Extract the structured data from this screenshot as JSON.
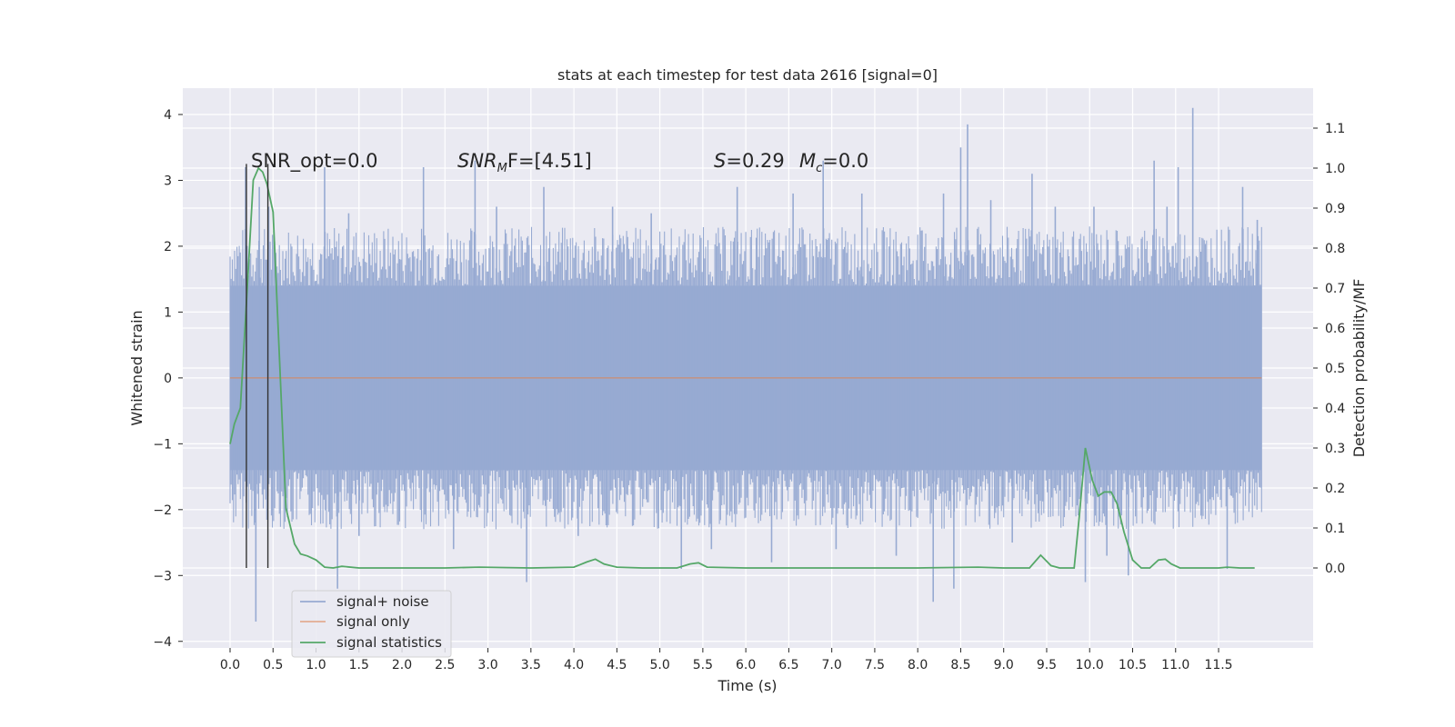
{
  "chart_data": {
    "type": "line",
    "title": "stats at each timestep for test data 2616 [signal=0]",
    "xlabel": "Time (s)",
    "ylabel": "Whitened strain",
    "ylabel_right": "Detection probability/MF",
    "xlim": [
      -0.55,
      12.6
    ],
    "ylim": [
      -4.1,
      4.4
    ],
    "ylim_right": [
      -0.2,
      1.2
    ],
    "x_ticks": [
      0.0,
      0.5,
      1.0,
      1.5,
      2.0,
      2.5,
      3.0,
      3.5,
      4.0,
      4.5,
      5.0,
      5.5,
      6.0,
      6.5,
      7.0,
      7.5,
      8.0,
      8.5,
      9.0,
      9.5,
      10.0,
      10.5,
      11.0,
      11.5
    ],
    "x_tick_labels": [
      "0.0",
      "0.5",
      "1.0",
      "1.5",
      "2.0",
      "2.5",
      "3.0",
      "3.5",
      "4.0",
      "4.5",
      "5.0",
      "5.5",
      "6.0",
      "6.5",
      "7.0",
      "7.5",
      "8.0",
      "8.5",
      "9.0",
      "9.5",
      "10.0",
      "10.5",
      "11.0",
      "11.5"
    ],
    "y_ticks": [
      -4,
      -3,
      -2,
      -1,
      0,
      1,
      2,
      3,
      4
    ],
    "y_tick_labels": [
      "−4",
      "−3",
      "−2",
      "−1",
      "0",
      "1",
      "2",
      "3",
      "4"
    ],
    "y_right_ticks": [
      0.0,
      0.1,
      0.2,
      0.3,
      0.4,
      0.5,
      0.6,
      0.7,
      0.8,
      0.9,
      1.0,
      1.1
    ],
    "y_right_tick_labels": [
      "0.0",
      "0.1",
      "0.2",
      "0.3",
      "0.4",
      "0.5",
      "0.6",
      "0.7",
      "0.8",
      "0.9",
      "1.0",
      "1.1"
    ],
    "grid": true,
    "legend_position": "lower-left",
    "annotations": {
      "snr_opt": "SNR_opt=0.0",
      "snr_mf_main": "SNR",
      "snr_mf_sub": "M",
      "snr_mf_rest": "F=[4.51]",
      "s_main": "S",
      "s_rest": "=0.29",
      "mc_main": "M",
      "mc_sub": "c",
      "mc_rest": "=0.0"
    },
    "vertical_markers_x": [
      0.19,
      0.44
    ],
    "series": [
      {
        "name": "signal+ noise",
        "color": "#97aad2",
        "axis": "left",
        "x_range": [
          0.0,
          12.0
        ],
        "band": [
          -1.4,
          1.4
        ],
        "spikes": [
          [
            0.18,
            3.2
          ],
          [
            0.34,
            2.9
          ],
          [
            0.45,
            2.6
          ],
          [
            1.1,
            3.2
          ],
          [
            1.25,
            -3.2
          ],
          [
            1.38,
            2.5
          ],
          [
            2.25,
            3.2
          ],
          [
            2.85,
            3.3
          ],
          [
            3.45,
            -3.1
          ],
          [
            3.65,
            2.9
          ],
          [
            4.45,
            2.6
          ],
          [
            5.25,
            -2.9
          ],
          [
            5.9,
            2.9
          ],
          [
            6.3,
            -2.8
          ],
          [
            6.55,
            2.8
          ],
          [
            6.9,
            3.3
          ],
          [
            7.35,
            2.8
          ],
          [
            7.75,
            -2.7
          ],
          [
            8.18,
            -3.4
          ],
          [
            8.3,
            2.8
          ],
          [
            8.42,
            -3.2
          ],
          [
            8.5,
            3.5
          ],
          [
            8.58,
            3.85
          ],
          [
            8.85,
            2.7
          ],
          [
            9.33,
            3.1
          ],
          [
            9.6,
            2.6
          ],
          [
            9.95,
            -3.1
          ],
          [
            10.05,
            2.6
          ],
          [
            10.45,
            -3.0
          ],
          [
            10.75,
            3.3
          ],
          [
            11.03,
            3.2
          ],
          [
            11.2,
            4.1
          ],
          [
            11.6,
            -2.9
          ],
          [
            11.78,
            2.9
          ],
          [
            11.95,
            2.4
          ],
          [
            0.3,
            -3.7
          ],
          [
            1.5,
            -2.4
          ],
          [
            2.6,
            -2.6
          ],
          [
            3.1,
            2.6
          ],
          [
            4.05,
            -2.4
          ],
          [
            4.9,
            2.5
          ],
          [
            5.6,
            -2.6
          ],
          [
            7.05,
            -2.6
          ],
          [
            9.1,
            -2.5
          ],
          [
            10.2,
            -2.7
          ],
          [
            10.9,
            2.6
          ]
        ]
      },
      {
        "name": "signal only",
        "color": "#dd8452",
        "axis": "left",
        "x": [
          0.0,
          12.0
        ],
        "y": [
          0.0,
          0.0
        ]
      },
      {
        "name": "signal statistics",
        "color": "#55a868",
        "axis": "right",
        "x": [
          0.0,
          0.05,
          0.12,
          0.2,
          0.27,
          0.33,
          0.38,
          0.43,
          0.5,
          0.58,
          0.65,
          0.75,
          0.82,
          0.9,
          1.0,
          1.1,
          1.2,
          1.3,
          1.5,
          2.0,
          2.5,
          2.9,
          3.5,
          4.0,
          4.15,
          4.25,
          4.35,
          4.5,
          4.8,
          5.2,
          5.35,
          5.45,
          5.55,
          6.0,
          7.0,
          8.0,
          8.7,
          9.0,
          9.3,
          9.43,
          9.55,
          9.65,
          9.82,
          9.88,
          9.95,
          10.03,
          10.1,
          10.17,
          10.25,
          10.32,
          10.4,
          10.5,
          10.6,
          10.7,
          10.8,
          10.88,
          10.95,
          11.05,
          11.5,
          11.6,
          11.75,
          11.92
        ],
        "y": [
          0.31,
          0.36,
          0.4,
          0.7,
          0.97,
          1.0,
          0.99,
          0.96,
          0.89,
          0.5,
          0.15,
          0.06,
          0.035,
          0.03,
          0.02,
          0.002,
          0.0,
          0.004,
          0.0,
          0.0,
          0.0,
          0.002,
          0.0,
          0.002,
          0.015,
          0.022,
          0.01,
          0.002,
          0.0,
          0.0,
          0.01,
          0.013,
          0.002,
          0.0,
          0.0,
          0.0,
          0.002,
          0.0,
          0.0,
          0.032,
          0.006,
          0.0,
          0.0,
          0.13,
          0.3,
          0.22,
          0.18,
          0.19,
          0.19,
          0.16,
          0.09,
          0.02,
          0.0,
          0.0,
          0.02,
          0.022,
          0.01,
          0.0,
          0.0,
          0.002,
          0.0,
          0.0
        ]
      }
    ]
  }
}
